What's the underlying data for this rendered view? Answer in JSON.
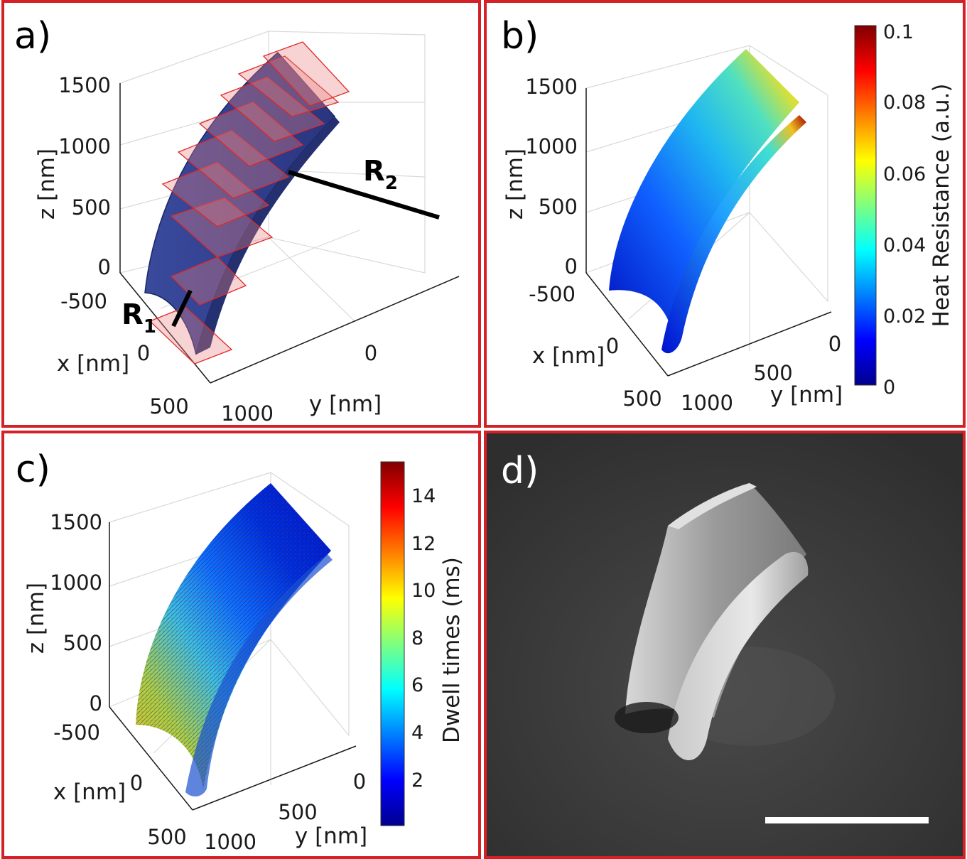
{
  "figure": {
    "panel_a": {
      "label": "a)",
      "z_axis_label": "z [nm]",
      "x_axis_label": "x [nm]",
      "y_axis_label": "y [nm]",
      "z_ticks": [
        "1500",
        "1000",
        "500",
        "0"
      ],
      "x_ticks": [
        "-500",
        "0",
        "500"
      ],
      "y_ticks": [
        "0",
        "1000"
      ],
      "annotation_r1": "R",
      "annotation_r1_sub": "1",
      "annotation_r2": "R",
      "annotation_r2_sub": "2",
      "surface_color": "#2b3a8c",
      "plane_color": "#e03030"
    },
    "panel_b": {
      "label": "b)",
      "z_axis_label": "z [nm]",
      "x_axis_label": "x [nm]",
      "y_axis_label": "y [nm]",
      "z_ticks": [
        "1500",
        "1000",
        "500",
        "0"
      ],
      "x_ticks": [
        "-500",
        "0",
        "500"
      ],
      "y_ticks": [
        "0",
        "500",
        "1000"
      ],
      "colorbar_label": "Heat Resistance (a.u.)",
      "colorbar_ticks": [
        "0.1",
        "0.08",
        "0.06",
        "0.04",
        "0.02",
        "0"
      ]
    },
    "panel_c": {
      "label": "c)",
      "z_axis_label": "z [nm]",
      "x_axis_label": "x [nm]",
      "y_axis_label": "y [nm]",
      "z_ticks": [
        "1500",
        "1000",
        "500",
        "0"
      ],
      "x_ticks": [
        "-500",
        "0",
        "500"
      ],
      "y_ticks": [
        "0",
        "500",
        "1000"
      ],
      "colorbar_label": "Dwell times (ms)",
      "colorbar_ticks": [
        "14",
        "12",
        "10",
        "8",
        "6",
        "4",
        "2"
      ]
    },
    "panel_d": {
      "label": "d)",
      "background_color": "#3a3a3a"
    }
  }
}
